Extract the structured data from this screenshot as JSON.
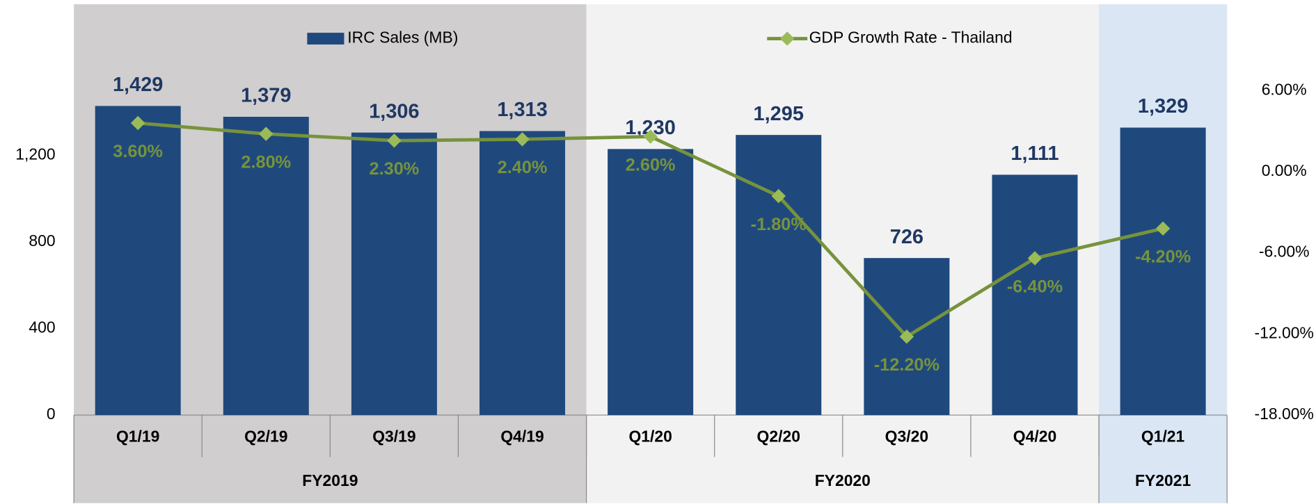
{
  "chart_data": {
    "type": "bar-line",
    "categories": [
      "Q1/19",
      "Q2/19",
      "Q3/19",
      "Q4/19",
      "Q1/20",
      "Q2/20",
      "Q3/20",
      "Q4/20",
      "Q1/21"
    ],
    "groups": [
      {
        "label": "FY2019",
        "count": 4,
        "color": "#d0cece"
      },
      {
        "label": "FY2020",
        "count": 4,
        "color": "#f2f2f2"
      },
      {
        "label": "FY2021",
        "count": 1,
        "color": "#dae6f4"
      }
    ],
    "series": [
      {
        "name": "IRC Sales (MB)",
        "color": "#1f497d",
        "type": "bar",
        "values": [
          1429,
          1379,
          1306,
          1313,
          1230,
          1295,
          726,
          1111,
          1329
        ],
        "value_labels": [
          "1,429",
          "1,379",
          "1,306",
          "1,313",
          "1,230",
          "1,295",
          "726",
          "1,111",
          "1,329"
        ]
      },
      {
        "name": "GDP Growth Rate - Thailand",
        "color": "#77933c",
        "marker_color": "#9bbb59",
        "type": "line",
        "axis": "y2",
        "values": [
          3.6,
          2.8,
          2.3,
          2.4,
          2.6,
          -1.8,
          -12.2,
          -6.4,
          -4.2
        ],
        "value_labels": [
          "3.60%",
          "2.80%",
          "2.30%",
          "2.40%",
          "2.60%",
          "-1.80%",
          "-12.20%",
          "-6.40%",
          "-4.20%"
        ]
      }
    ],
    "ylim": [
      0,
      1500
    ],
    "yticks": [
      0,
      400,
      800,
      {
        "value": 1200,
        "label": "1,200"
      }
    ],
    "y2lim": [
      -18,
      6
    ],
    "y2ticks": [
      {
        "value": -18,
        "label": "-18.00%"
      },
      {
        "value": -12,
        "label": "-12.00%"
      },
      {
        "value": -6,
        "label": "-6.00%"
      },
      {
        "value": 0,
        "label": "0.00%"
      },
      {
        "value": 6,
        "label": "6.00%"
      }
    ]
  }
}
